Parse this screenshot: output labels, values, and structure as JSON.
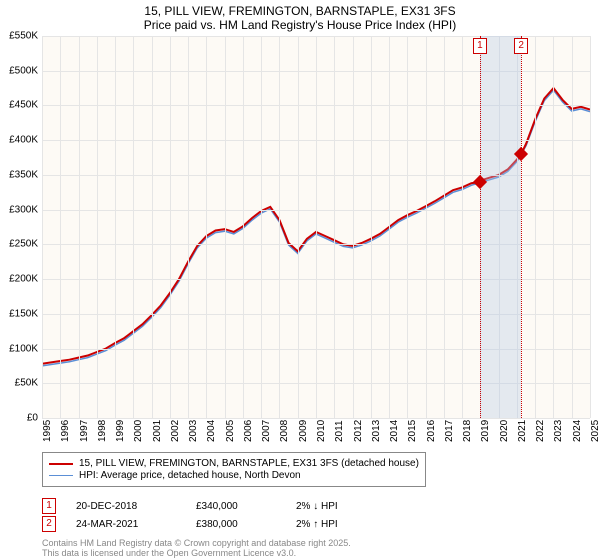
{
  "title": {
    "line1": "15, PILL VIEW, FREMINGTON, BARNSTAPLE, EX31 3FS",
    "line2": "Price paid vs. HM Land Registry's House Price Index (HPI)"
  },
  "chart": {
    "type": "line",
    "background_color": "#fdfaf5",
    "grid_color": "#e5e5e5",
    "y_axis": {
      "min": 0,
      "max": 550,
      "step": 50,
      "unit": "K",
      "prefix": "£",
      "labels": [
        "£0",
        "£50K",
        "£100K",
        "£150K",
        "£200K",
        "£250K",
        "£300K",
        "£350K",
        "£400K",
        "£450K",
        "£500K",
        "£550K"
      ]
    },
    "x_axis": {
      "min": 1995,
      "max": 2025,
      "labels": [
        "1995",
        "1996",
        "1997",
        "1998",
        "1999",
        "2000",
        "2001",
        "2002",
        "2003",
        "2004",
        "2005",
        "2006",
        "2007",
        "2008",
        "2009",
        "2010",
        "2011",
        "2012",
        "2013",
        "2014",
        "2015",
        "2016",
        "2017",
        "2018",
        "2019",
        "2020",
        "2021",
        "2022",
        "2023",
        "2024",
        "2025"
      ]
    },
    "series": [
      {
        "name": "price_paid",
        "label": "15, PILL VIEW, FREMINGTON, BARNSTAPLE, EX31 3FS (detached house)",
        "color": "#cc0000",
        "width": 2,
        "data": [
          [
            1995,
            78
          ],
          [
            1995.5,
            80
          ],
          [
            1996,
            82
          ],
          [
            1996.5,
            84
          ],
          [
            1997,
            87
          ],
          [
            1997.5,
            90
          ],
          [
            1998,
            95
          ],
          [
            1998.5,
            100
          ],
          [
            1999,
            108
          ],
          [
            1999.5,
            115
          ],
          [
            2000,
            125
          ],
          [
            2000.5,
            135
          ],
          [
            2001,
            148
          ],
          [
            2001.5,
            162
          ],
          [
            2002,
            180
          ],
          [
            2002.5,
            200
          ],
          [
            2003,
            225
          ],
          [
            2003.5,
            248
          ],
          [
            2004,
            262
          ],
          [
            2004.5,
            270
          ],
          [
            2005,
            272
          ],
          [
            2005.5,
            268
          ],
          [
            2006,
            276
          ],
          [
            2006.5,
            288
          ],
          [
            2007,
            298
          ],
          [
            2007.5,
            304
          ],
          [
            2008,
            285
          ],
          [
            2008.5,
            252
          ],
          [
            2009,
            240
          ],
          [
            2009.5,
            258
          ],
          [
            2010,
            268
          ],
          [
            2010.5,
            262
          ],
          [
            2011,
            256
          ],
          [
            2011.5,
            250
          ],
          [
            2012,
            248
          ],
          [
            2012.5,
            252
          ],
          [
            2013,
            258
          ],
          [
            2013.5,
            265
          ],
          [
            2014,
            275
          ],
          [
            2014.5,
            285
          ],
          [
            2015,
            292
          ],
          [
            2015.5,
            298
          ],
          [
            2016,
            305
          ],
          [
            2016.5,
            312
          ],
          [
            2017,
            320
          ],
          [
            2017.5,
            328
          ],
          [
            2018,
            332
          ],
          [
            2018.5,
            338
          ],
          [
            2018.97,
            340
          ],
          [
            2019,
            342
          ],
          [
            2019.5,
            346
          ],
          [
            2020,
            350
          ],
          [
            2020.5,
            358
          ],
          [
            2021,
            372
          ],
          [
            2021.23,
            380
          ],
          [
            2021.5,
            395
          ],
          [
            2022,
            430
          ],
          [
            2022.5,
            460
          ],
          [
            2023,
            475
          ],
          [
            2023.5,
            458
          ],
          [
            2024,
            445
          ],
          [
            2024.5,
            448
          ],
          [
            2025,
            444
          ]
        ]
      },
      {
        "name": "hpi",
        "label": "HPI: Average price, detached house, North Devon",
        "color": "#5b8fd6",
        "width": 1.5,
        "data": [
          [
            1995,
            75
          ],
          [
            1995.5,
            77
          ],
          [
            1996,
            79
          ],
          [
            1996.5,
            81
          ],
          [
            1997,
            84
          ],
          [
            1997.5,
            87
          ],
          [
            1998,
            92
          ],
          [
            1998.5,
            97
          ],
          [
            1999,
            105
          ],
          [
            1999.5,
            112
          ],
          [
            2000,
            122
          ],
          [
            2000.5,
            132
          ],
          [
            2001,
            145
          ],
          [
            2001.5,
            159
          ],
          [
            2002,
            177
          ],
          [
            2002.5,
            197
          ],
          [
            2003,
            222
          ],
          [
            2003.5,
            245
          ],
          [
            2004,
            259
          ],
          [
            2004.5,
            267
          ],
          [
            2005,
            269
          ],
          [
            2005.5,
            265
          ],
          [
            2006,
            273
          ],
          [
            2006.5,
            285
          ],
          [
            2007,
            295
          ],
          [
            2007.5,
            301
          ],
          [
            2008,
            282
          ],
          [
            2008.5,
            249
          ],
          [
            2009,
            237
          ],
          [
            2009.5,
            255
          ],
          [
            2010,
            265
          ],
          [
            2010.5,
            259
          ],
          [
            2011,
            253
          ],
          [
            2011.5,
            247
          ],
          [
            2012,
            245
          ],
          [
            2012.5,
            249
          ],
          [
            2013,
            255
          ],
          [
            2013.5,
            262
          ],
          [
            2014,
            272
          ],
          [
            2014.5,
            282
          ],
          [
            2015,
            289
          ],
          [
            2015.5,
            295
          ],
          [
            2016,
            302
          ],
          [
            2016.5,
            309
          ],
          [
            2017,
            317
          ],
          [
            2017.5,
            325
          ],
          [
            2018,
            329
          ],
          [
            2018.5,
            335
          ],
          [
            2019,
            339
          ],
          [
            2019.5,
            343
          ],
          [
            2020,
            347
          ],
          [
            2020.5,
            355
          ],
          [
            2021,
            369
          ],
          [
            2021.5,
            392
          ],
          [
            2022,
            427
          ],
          [
            2022.5,
            457
          ],
          [
            2023,
            472
          ],
          [
            2023.5,
            455
          ],
          [
            2024,
            442
          ],
          [
            2024.5,
            445
          ],
          [
            2025,
            441
          ]
        ]
      }
    ],
    "highlight_band": {
      "from": 2018.97,
      "to": 2021.23,
      "color": "rgba(180,200,230,0.35)"
    },
    "markers": [
      {
        "id": "1",
        "x": 2018.97,
        "y": 340,
        "box_color": "#cc0000"
      },
      {
        "id": "2",
        "x": 2021.23,
        "y": 380,
        "box_color": "#cc0000"
      }
    ]
  },
  "legend": {
    "items": [
      {
        "color": "#cc0000",
        "width": 2,
        "key": "chart.series.0.label"
      },
      {
        "color": "#5b8fd6",
        "width": 1.5,
        "key": "chart.series.1.label"
      }
    ]
  },
  "points": [
    {
      "id": "1",
      "date": "20-DEC-2018",
      "price": "£340,000",
      "pct": "2% ↓ HPI"
    },
    {
      "id": "2",
      "date": "24-MAR-2021",
      "price": "£380,000",
      "pct": "2% ↑ HPI"
    }
  ],
  "footer": {
    "line1": "Contains HM Land Registry data © Crown copyright and database right 2025.",
    "line2": "This data is licensed under the Open Government Licence v3.0."
  }
}
